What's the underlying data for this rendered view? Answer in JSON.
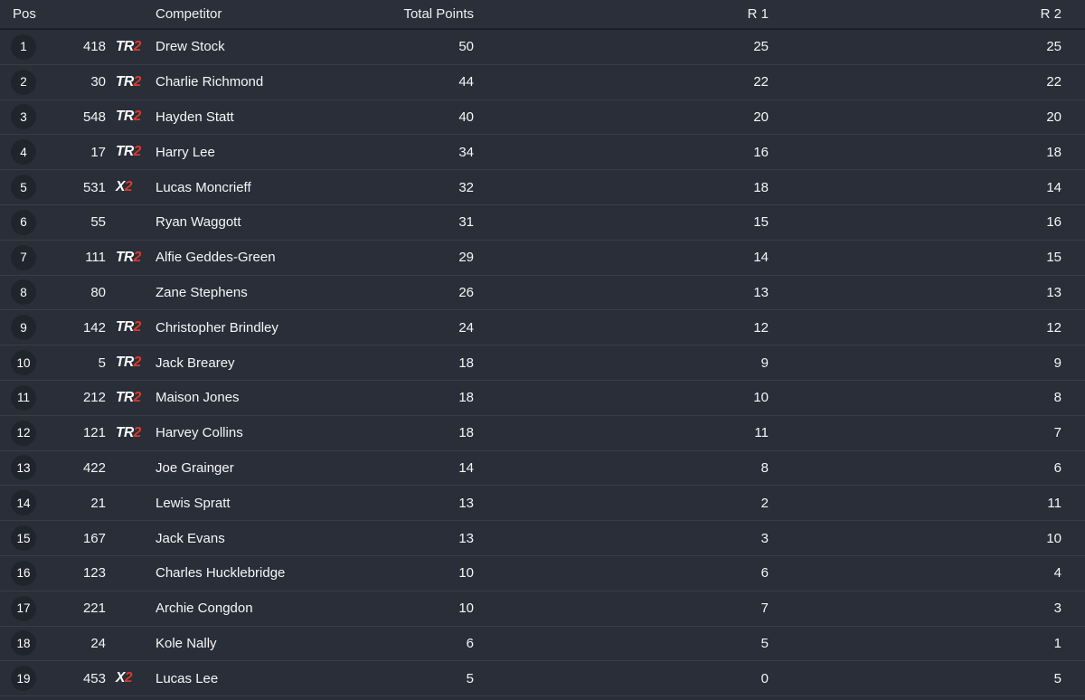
{
  "colors": {
    "background": "#292e38",
    "row_separator": "rgba(255,255,255,0.075)",
    "header_separator": "#1b1f27",
    "pos_badge_bg": "#20242d",
    "accent_red": "#d93a2b",
    "text": "#f5f6f8"
  },
  "table": {
    "headers": {
      "pos": "Pos",
      "competitor": "Competitor",
      "total": "Total Points",
      "r1": "R 1",
      "r2": "R 2"
    },
    "rows": [
      {
        "pos": "1",
        "num": "418",
        "team": "TR2",
        "name": "Drew Stock",
        "total": "50",
        "r1": "25",
        "r2": "25"
      },
      {
        "pos": "2",
        "num": "30",
        "team": "TR2",
        "name": "Charlie Richmond",
        "total": "44",
        "r1": "22",
        "r2": "22"
      },
      {
        "pos": "3",
        "num": "548",
        "team": "TR2",
        "name": "Hayden Statt",
        "total": "40",
        "r1": "20",
        "r2": "20"
      },
      {
        "pos": "4",
        "num": "17",
        "team": "TR2",
        "name": "Harry Lee",
        "total": "34",
        "r1": "16",
        "r2": "18"
      },
      {
        "pos": "5",
        "num": "531",
        "team": "X2",
        "name": "Lucas Moncrieff",
        "total": "32",
        "r1": "18",
        "r2": "14"
      },
      {
        "pos": "6",
        "num": "55",
        "team": "",
        "name": "Ryan Waggott",
        "total": "31",
        "r1": "15",
        "r2": "16"
      },
      {
        "pos": "7",
        "num": "111",
        "team": "TR2",
        "name": "Alfie Geddes-Green",
        "total": "29",
        "r1": "14",
        "r2": "15"
      },
      {
        "pos": "8",
        "num": "80",
        "team": "",
        "name": "Zane Stephens",
        "total": "26",
        "r1": "13",
        "r2": "13"
      },
      {
        "pos": "9",
        "num": "142",
        "team": "TR2",
        "name": "Christopher Brindley",
        "total": "24",
        "r1": "12",
        "r2": "12"
      },
      {
        "pos": "10",
        "num": "5",
        "team": "TR2",
        "name": "Jack Brearey",
        "total": "18",
        "r1": "9",
        "r2": "9"
      },
      {
        "pos": "11",
        "num": "212",
        "team": "TR2",
        "name": "Maison Jones",
        "total": "18",
        "r1": "10",
        "r2": "8"
      },
      {
        "pos": "12",
        "num": "121",
        "team": "TR2",
        "name": "Harvey Collins",
        "total": "18",
        "r1": "11",
        "r2": "7"
      },
      {
        "pos": "13",
        "num": "422",
        "team": "",
        "name": "Joe Grainger",
        "total": "14",
        "r1": "8",
        "r2": "6"
      },
      {
        "pos": "14",
        "num": "21",
        "team": "",
        "name": "Lewis Spratt",
        "total": "13",
        "r1": "2",
        "r2": "11"
      },
      {
        "pos": "15",
        "num": "167",
        "team": "",
        "name": "Jack Evans",
        "total": "13",
        "r1": "3",
        "r2": "10"
      },
      {
        "pos": "16",
        "num": "123",
        "team": "",
        "name": "Charles Hucklebridge",
        "total": "10",
        "r1": "6",
        "r2": "4"
      },
      {
        "pos": "17",
        "num": "221",
        "team": "",
        "name": "Archie Congdon",
        "total": "10",
        "r1": "7",
        "r2": "3"
      },
      {
        "pos": "18",
        "num": "24",
        "team": "",
        "name": "Kole Nally",
        "total": "6",
        "r1": "5",
        "r2": "1"
      },
      {
        "pos": "19",
        "num": "453",
        "team": "X2",
        "name": "Lucas Lee",
        "total": "5",
        "r1": "0",
        "r2": "5"
      }
    ]
  }
}
